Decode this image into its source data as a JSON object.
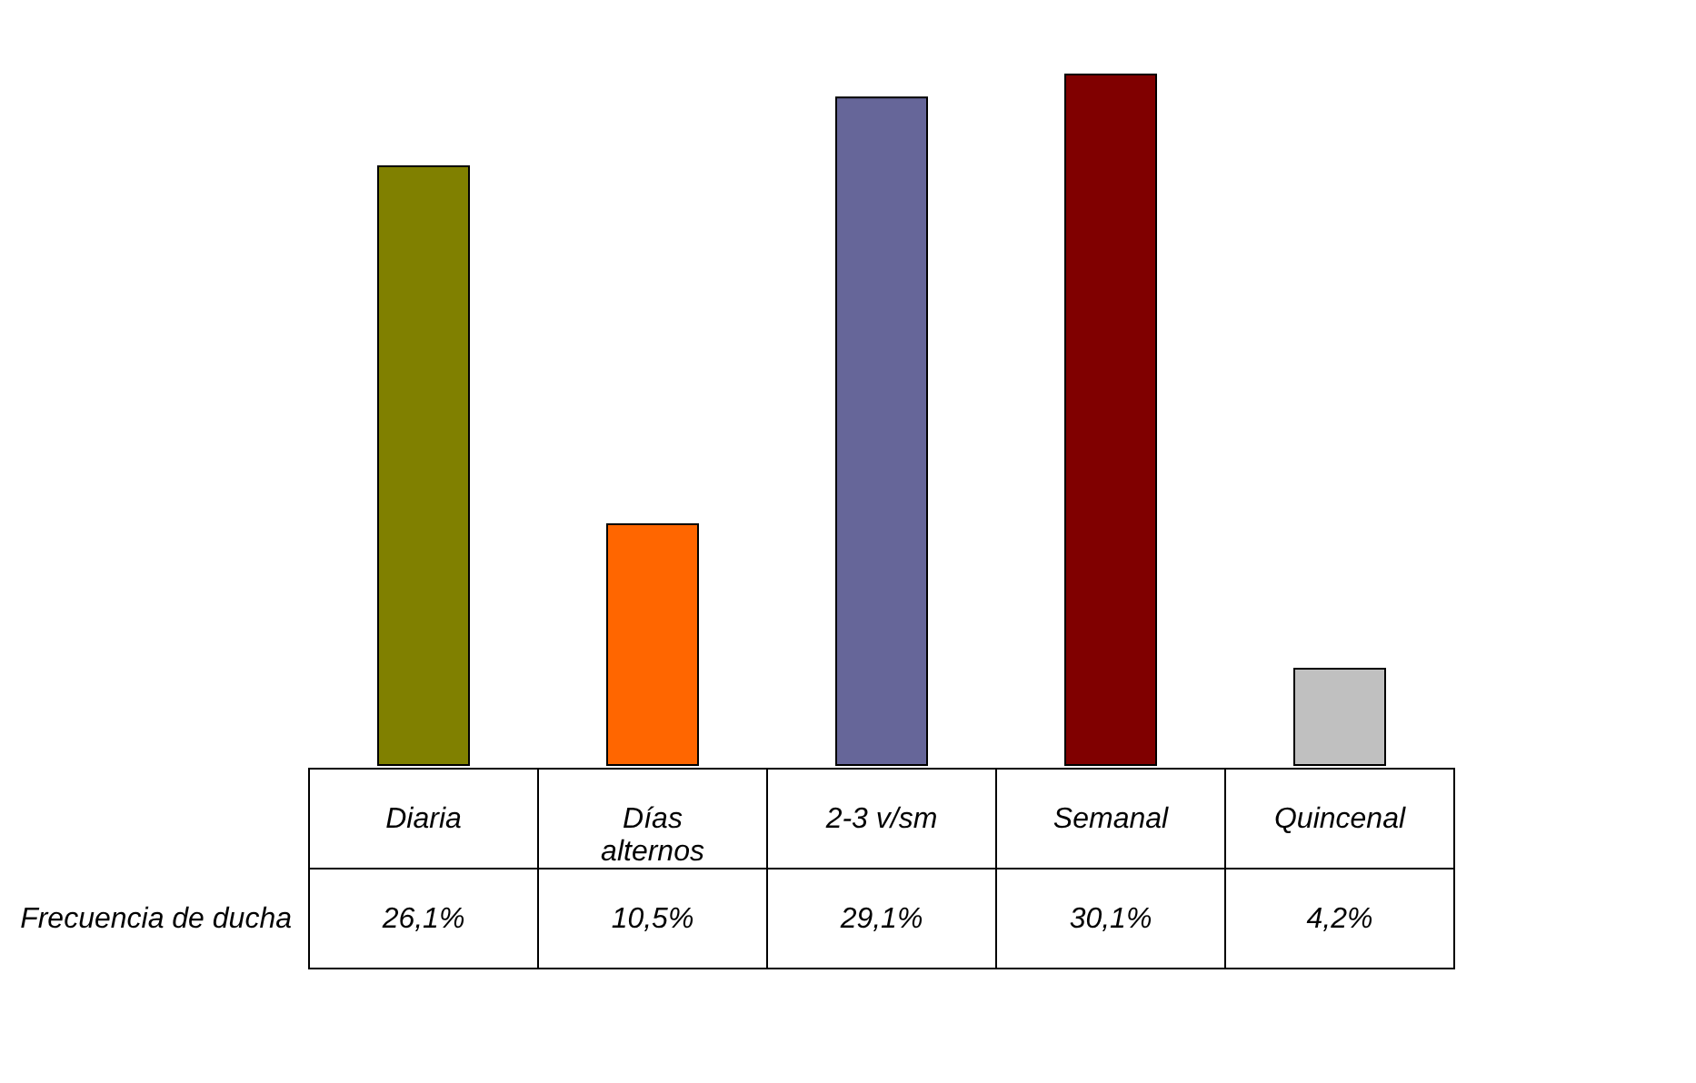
{
  "chart_data": {
    "type": "bar",
    "categories": [
      "Diaria",
      "Días\nalternos",
      "2-3 v/sm",
      "Semanal",
      "Quincenal"
    ],
    "series": [
      {
        "name": "Frecuencia de ducha",
        "colors": [
          "#808000",
          "#ff6600",
          "#666699",
          "#800000",
          "#c0c0c0"
        ],
        "values": [
          26.1,
          10.5,
          29.1,
          30.1,
          4.2
        ],
        "value_labels": [
          "26,1%",
          "10,5%",
          "29,1%",
          "30,1%",
          "4,2%"
        ]
      }
    ],
    "orientation": "vertical"
  }
}
